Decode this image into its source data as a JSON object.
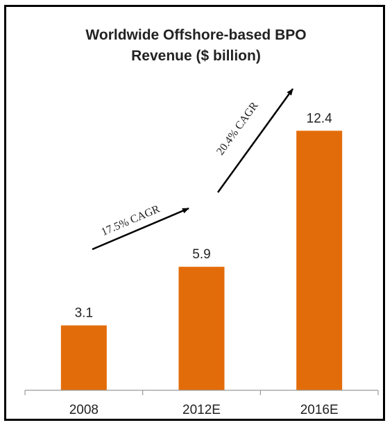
{
  "chart_data": {
    "type": "bar",
    "title_lines": [
      "Worldwide Offshore-based BPO",
      "Revenue ($ billion)"
    ],
    "categories": [
      "2008",
      "2012E",
      "2016E"
    ],
    "values": [
      3.1,
      5.9,
      12.4
    ],
    "value_labels": [
      "3.1",
      "5.9",
      "12.4"
    ],
    "xlabel": "",
    "ylabel": "",
    "ylim": [
      0,
      14.5
    ],
    "grid": false,
    "legend": "none",
    "bar_color": "#E36C0A",
    "annotations": [
      {
        "text": "17.5% CAGR",
        "from": "2008",
        "to": "2012E"
      },
      {
        "text": "20.4% CAGR",
        "from": "2012E",
        "to": "2016E"
      }
    ]
  }
}
